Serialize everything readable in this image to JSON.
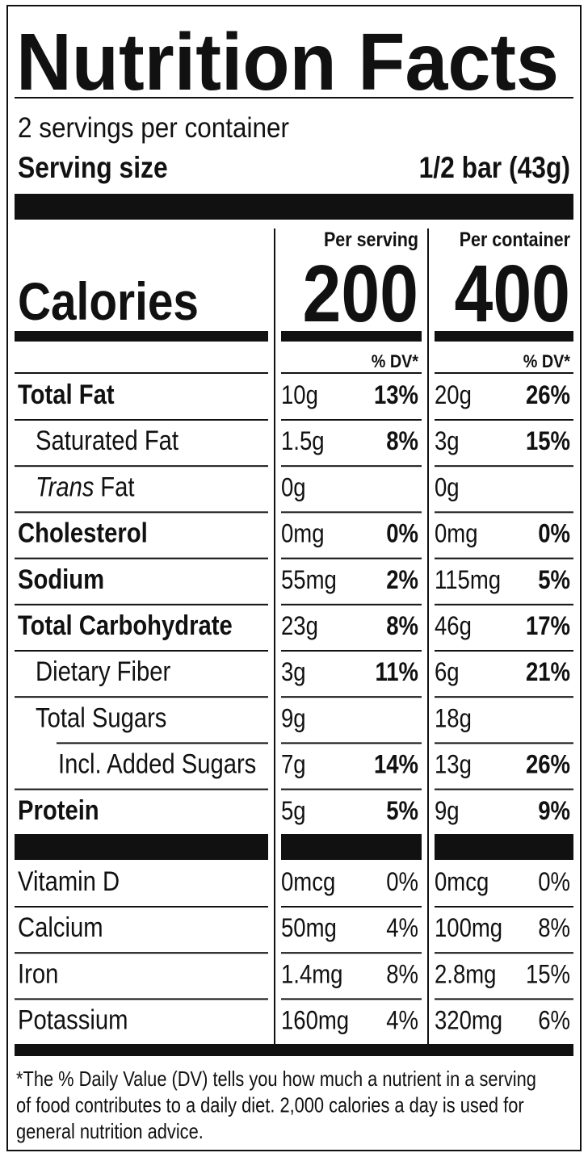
{
  "title": "Nutrition Facts",
  "servings": "2 servings per container",
  "serving_size": {
    "label": "Serving size",
    "value": "1/2 bar (43g)"
  },
  "columns": [
    "Per serving",
    "Per container"
  ],
  "calories": {
    "label": "Calories",
    "values": [
      "200",
      "400"
    ]
  },
  "dv_header": [
    "% DV*",
    "% DV*"
  ],
  "nutrients": [
    {
      "name": "Total Fat",
      "bold": true,
      "indent": 0,
      "serving": {
        "amount": "10g",
        "dv": "13%"
      },
      "container": {
        "amount": "20g",
        "dv": "26%"
      }
    },
    {
      "name": "Saturated Fat",
      "bold": false,
      "indent": 1,
      "serving": {
        "amount": "1.5g",
        "dv": "8%"
      },
      "container": {
        "amount": "3g",
        "dv": "15%"
      }
    },
    {
      "name_italic": "Trans",
      "name": "Fat",
      "bold": false,
      "indent": 1,
      "serving": {
        "amount": "0g"
      },
      "container": {
        "amount": "0g"
      }
    },
    {
      "name": "Cholesterol",
      "bold": true,
      "indent": 0,
      "serving": {
        "amount": "0mg",
        "dv": "0%"
      },
      "container": {
        "amount": "0mg",
        "dv": "0%"
      }
    },
    {
      "name": "Sodium",
      "bold": true,
      "indent": 0,
      "serving": {
        "amount": "55mg",
        "dv": "2%"
      },
      "container": {
        "amount": "115mg",
        "dv": "5%"
      }
    },
    {
      "name": "Total Carbohydrate",
      "bold": true,
      "indent": 0,
      "serving": {
        "amount": "23g",
        "dv": "8%"
      },
      "container": {
        "amount": "46g",
        "dv": "17%"
      }
    },
    {
      "name": "Dietary Fiber",
      "bold": false,
      "indent": 1,
      "serving": {
        "amount": "3g",
        "dv": "11%"
      },
      "container": {
        "amount": "6g",
        "dv": "21%"
      }
    },
    {
      "name": "Total Sugars",
      "bold": false,
      "indent": 1,
      "serving": {
        "amount": "9g"
      },
      "container": {
        "amount": "18g"
      }
    },
    {
      "name": "Incl. Added Sugars",
      "bold": false,
      "indent": 2,
      "serving": {
        "amount": "7g",
        "dv": "14%"
      },
      "container": {
        "amount": "13g",
        "dv": "26%"
      }
    },
    {
      "name": "Protein",
      "bold": true,
      "indent": 0,
      "serving": {
        "amount": "5g",
        "dv": "5%"
      },
      "container": {
        "amount": "9g",
        "dv": "9%"
      }
    }
  ],
  "vitamins": [
    {
      "name": "Vitamin D",
      "serving": {
        "amount": "0mcg",
        "dv": "0%"
      },
      "container": {
        "amount": "0mcg",
        "dv": "0%"
      }
    },
    {
      "name": "Calcium",
      "serving": {
        "amount": "50mg",
        "dv": "4%"
      },
      "container": {
        "amount": "100mg",
        "dv": "8%"
      }
    },
    {
      "name": "Iron",
      "serving": {
        "amount": "1.4mg",
        "dv": "8%"
      },
      "container": {
        "amount": "2.8mg",
        "dv": "15%"
      }
    },
    {
      "name": "Potassium",
      "serving": {
        "amount": "160mg",
        "dv": "4%"
      },
      "container": {
        "amount": "320mg",
        "dv": "6%"
      }
    }
  ],
  "footnote": [
    "*The % Daily Value (DV) tells you how much a nutrient in a serving",
    "of food contributes to a daily diet. 2,000 calories a day is used for",
    "general nutrition advice."
  ]
}
